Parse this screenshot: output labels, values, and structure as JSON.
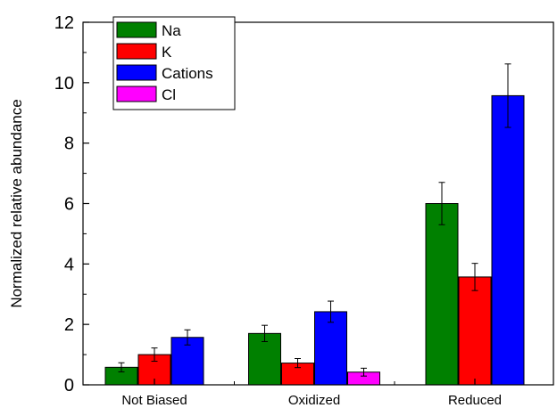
{
  "chart_data": {
    "type": "bar",
    "title": "",
    "xlabel": "",
    "ylabel": "Normalized relative abundance",
    "ylim": [
      0,
      12
    ],
    "yticks": [
      0,
      2,
      4,
      6,
      8,
      10,
      12
    ],
    "grid": false,
    "legend_position": "top-left",
    "categories": [
      "Not Biased",
      "Oxidized",
      "Reduced"
    ],
    "series": [
      {
        "name": "Na",
        "color": "#008000",
        "values": [
          0.58,
          1.7,
          6.0
        ],
        "errors": [
          0.15,
          0.27,
          0.7
        ]
      },
      {
        "name": "K",
        "color": "#ff0000",
        "values": [
          1.0,
          0.72,
          3.57
        ],
        "errors": [
          0.22,
          0.15,
          0.45
        ]
      },
      {
        "name": "Cations",
        "color": "#0000ff",
        "values": [
          1.57,
          2.42,
          9.57
        ],
        "errors": [
          0.25,
          0.35,
          1.05
        ]
      },
      {
        "name": "Cl",
        "color": "#ff00ff",
        "values": [
          null,
          0.42,
          null
        ],
        "errors": [
          null,
          0.13,
          null
        ]
      }
    ]
  }
}
